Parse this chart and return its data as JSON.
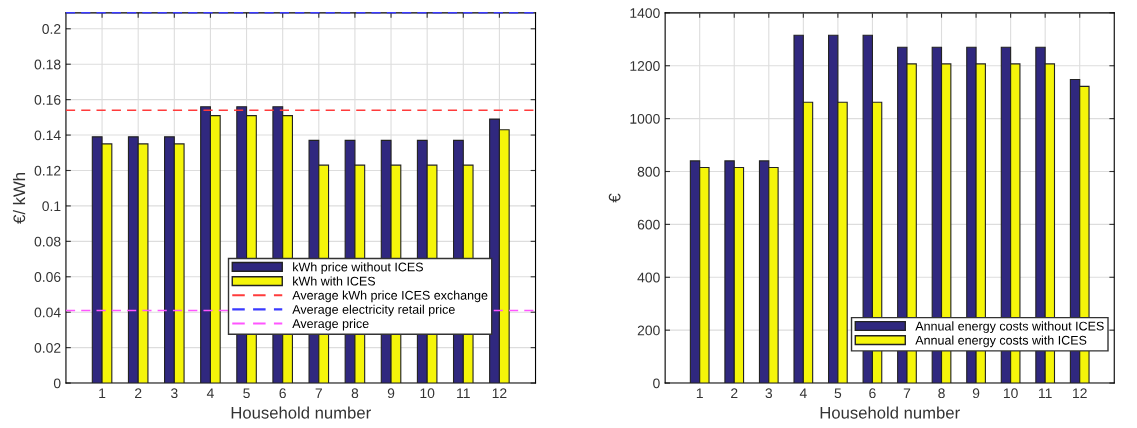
{
  "chart_data": [
    {
      "type": "bar",
      "xlabel": "Household number",
      "ylabel": "€/ kWh",
      "categories": [
        "1",
        "2",
        "3",
        "4",
        "5",
        "6",
        "7",
        "8",
        "9",
        "10",
        "11",
        "12"
      ],
      "series": [
        {
          "name": "kWh price without ICES",
          "color": "#30287f",
          "values": [
            0.139,
            0.139,
            0.139,
            0.156,
            0.156,
            0.156,
            0.137,
            0.137,
            0.137,
            0.137,
            0.137,
            0.149
          ]
        },
        {
          "name": "kWh with ICES",
          "color": "#f5f50a",
          "values": [
            0.135,
            0.135,
            0.135,
            0.151,
            0.151,
            0.151,
            0.123,
            0.123,
            0.123,
            0.123,
            0.123,
            0.143
          ]
        }
      ],
      "ref_lines": [
        {
          "axis": "y",
          "value": 0.154,
          "label": "Average kWh price ICES exchange",
          "color": "#ff3b3b",
          "line_style": "dashed"
        },
        {
          "axis": "y",
          "value": 0.209,
          "label": "Average electricity retail price",
          "color": "#3a3aff",
          "line_style": "dashed"
        },
        {
          "axis": "y",
          "value": 0.041,
          "label": "Average price",
          "color": "#ff55ff",
          "line_style": "dashed"
        }
      ],
      "ylim": [
        0,
        0.209
      ],
      "yticks": [
        0,
        0.02,
        0.04,
        0.06,
        0.08,
        0.1,
        0.12,
        0.14,
        0.16,
        0.18,
        0.2
      ],
      "grid": true,
      "legend": "bottom right"
    },
    {
      "type": "bar",
      "xlabel": "Household number",
      "ylabel": "€",
      "categories": [
        "1",
        "2",
        "3",
        "4",
        "5",
        "6",
        "7",
        "8",
        "9",
        "10",
        "11",
        "12"
      ],
      "series": [
        {
          "name": "Annual energy costs without ICES",
          "color": "#30287f",
          "values": [
            840,
            840,
            840,
            1315,
            1315,
            1315,
            1270,
            1270,
            1270,
            1270,
            1270,
            1148
          ]
        },
        {
          "name": "Annual energy costs with ICES",
          "color": "#f5f50a",
          "values": [
            815,
            815,
            815,
            1062,
            1062,
            1062,
            1207,
            1207,
            1207,
            1207,
            1207,
            1122
          ]
        }
      ],
      "ylim": [
        0,
        1400
      ],
      "yticks": [
        0,
        200,
        400,
        600,
        800,
        1000,
        1200,
        1400
      ],
      "grid": true,
      "legend": "bottom right"
    }
  ]
}
